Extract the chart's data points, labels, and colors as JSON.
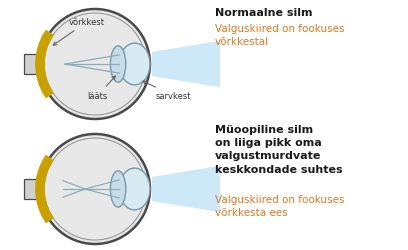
{
  "bg_color": "#ffffff",
  "bold_color": "#1a1a1a",
  "orange_color": "#e07820",
  "eye_outline_color": "#4a4a4a",
  "sclera_color": "#e8e8e8",
  "retina_gold": "#c8a000",
  "light_blue": "#c8e6f5",
  "lens_fill": "#c8dce8",
  "lens_edge": "#7799aa",
  "cornea_fill": "#d8eaf2",
  "cornea_edge": "#7799aa",
  "ray_color": "#8aadbb",
  "nerve_fill": "#d0d0d0",
  "nerve_edge": "#4a4a4a",
  "annotation_color": "#333333",
  "arrow_color": "#666666",
  "title1_bold": "Normaalne silm",
  "title1_text": "Valguskiired on fookuses\nvõrkkestal",
  "title2_bold": "Müoopiline silm\non liiga pikk oma\nvalgustmurdvate\nkeskkondade suhtes",
  "title2_text": "Valguskiired on fookuses\nvõrkkesta ees"
}
